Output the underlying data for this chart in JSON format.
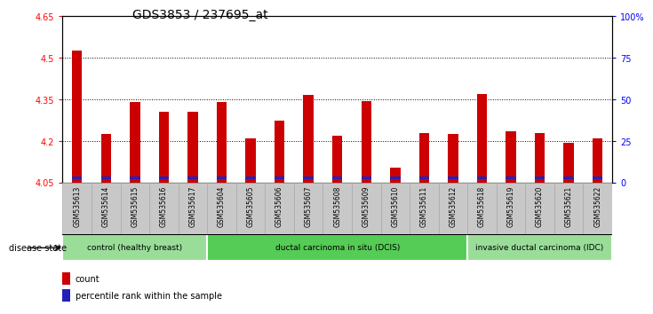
{
  "title": "GDS3853 / 237695_at",
  "samples": [
    "GSM535613",
    "GSM535614",
    "GSM535615",
    "GSM535616",
    "GSM535617",
    "GSM535604",
    "GSM535605",
    "GSM535606",
    "GSM535607",
    "GSM535608",
    "GSM535609",
    "GSM535610",
    "GSM535611",
    "GSM535612",
    "GSM535618",
    "GSM535619",
    "GSM535620",
    "GSM535621",
    "GSM535622"
  ],
  "count_values": [
    4.525,
    4.225,
    4.34,
    4.305,
    4.305,
    4.34,
    4.21,
    4.275,
    4.365,
    4.22,
    4.345,
    4.105,
    4.23,
    4.225,
    4.37,
    4.235,
    4.23,
    4.195,
    4.21
  ],
  "ymin": 4.05,
  "ymax": 4.65,
  "yticks": [
    4.05,
    4.2,
    4.35,
    4.5,
    4.65
  ],
  "ytick_labels": [
    "4.05",
    "4.2",
    "4.35",
    "4.5",
    "4.65"
  ],
  "grid_lines": [
    4.2,
    4.35,
    4.5
  ],
  "right_ytick_labels": [
    "0",
    "25",
    "50",
    "75",
    "100%"
  ],
  "bar_color": "#cc0000",
  "percentile_color": "#2222bb",
  "pct_bar_height": 0.008,
  "pct_bar_bottom": 4.063,
  "bar_width": 0.35,
  "groups": [
    {
      "label": "control (healthy breast)",
      "start": 0,
      "end": 5,
      "color": "#99dd99"
    },
    {
      "label": "ductal carcinoma in situ (DCIS)",
      "start": 5,
      "end": 14,
      "color": "#55cc55"
    },
    {
      "label": "invasive ductal carcinoma (IDC)",
      "start": 14,
      "end": 19,
      "color": "#99dd99"
    }
  ],
  "legend_labels": [
    "count",
    "percentile rank within the sample"
  ],
  "legend_colors": [
    "#cc0000",
    "#2222bb"
  ],
  "disease_state_label": "disease state",
  "title_fontsize": 10,
  "axis_fontsize": 7,
  "bar_fontsize": 5.5,
  "xtick_box_color": "#c8c8c8",
  "xtick_box_border": "#aaaaaa"
}
